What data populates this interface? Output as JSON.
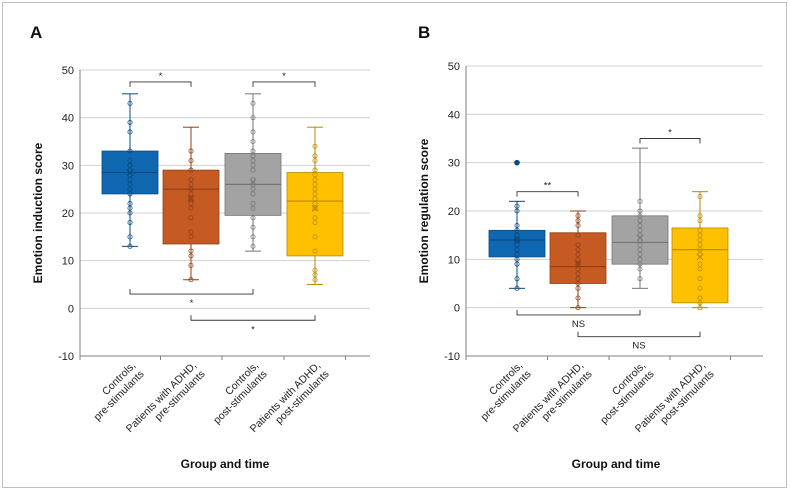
{
  "chart_data": [
    {
      "type": "box",
      "panel_label": "A",
      "title": "",
      "ylabel": "Emotion induction score",
      "xlabel": "Group and time",
      "ylim": [
        -10,
        50
      ],
      "yticks": [
        -10,
        0,
        10,
        20,
        30,
        40,
        50
      ],
      "grid": true,
      "categories": [
        [
          "Controls,",
          "pre-stimulants"
        ],
        [
          "Patients with ADHD,",
          "pre-stimulants"
        ],
        [
          "Controls,",
          "post-stimulants"
        ],
        [
          "Patients with ADHD,",
          "post-stimulants"
        ]
      ],
      "boxes": [
        {
          "color": "#0f67b1",
          "min": 13,
          "q1": 24,
          "median": 28.5,
          "q3": 33,
          "max": 45,
          "mean": 28.5,
          "points": [
            43,
            39,
            37,
            33,
            31,
            30,
            30,
            29,
            28,
            27,
            26,
            25,
            24,
            22,
            21,
            20,
            18,
            15,
            13
          ]
        },
        {
          "color": "#c55a22",
          "min": 6,
          "q1": 13.5,
          "median": 25,
          "q3": 29,
          "max": 38,
          "mean": 23,
          "points": [
            33,
            31,
            29,
            27,
            26,
            25,
            25,
            24,
            23,
            22,
            21,
            19,
            16,
            15,
            12,
            11,
            9,
            6
          ]
        },
        {
          "color": "#a3a3a3",
          "min": 12,
          "q1": 19.5,
          "median": 26,
          "q3": 32.5,
          "max": 45,
          "mean": 26.5,
          "points": [
            43,
            40,
            37,
            35,
            33,
            32,
            31,
            30,
            29,
            27,
            26,
            25,
            24,
            22,
            21,
            19,
            17,
            15,
            13
          ]
        },
        {
          "color": "#ffc000",
          "min": 5,
          "q1": 11,
          "median": 22.5,
          "q3": 28.5,
          "max": 38,
          "mean": 21,
          "points": [
            34,
            32,
            31,
            29,
            28,
            27,
            26,
            25,
            24,
            23,
            22,
            21,
            19,
            18,
            15,
            12,
            8,
            7,
            6
          ]
        }
      ],
      "significance": [
        {
          "from": 0,
          "to": 1,
          "label": "*",
          "position": "top",
          "y": 47.5
        },
        {
          "from": 2,
          "to": 3,
          "label": "*",
          "position": "top",
          "y": 47.5
        },
        {
          "from": 0,
          "to": 2,
          "label": "*",
          "position": "bottom",
          "y": 3
        },
        {
          "from": 1,
          "to": 3,
          "label": "*",
          "position": "bottom",
          "y": -2.5
        }
      ]
    },
    {
      "type": "box",
      "panel_label": "B",
      "title": "",
      "ylabel": "Emotion regulation score",
      "xlabel": "Group and time",
      "ylim": [
        -10,
        50
      ],
      "yticks": [
        -10,
        0,
        10,
        20,
        30,
        40,
        50
      ],
      "grid": true,
      "categories": [
        [
          "Controls,",
          "pre-stimulants"
        ],
        [
          "Patients with ADHD,",
          "pre-stimulants"
        ],
        [
          "Controls,",
          "post-stimulants"
        ],
        [
          "Patients with ADHD,",
          "post-stimulants"
        ]
      ],
      "boxes": [
        {
          "color": "#0f67b1",
          "min": 4,
          "q1": 10.5,
          "median": 14,
          "q3": 16,
          "max": 22,
          "mean": 14,
          "outliers": [
            30
          ],
          "points": [
            21,
            20,
            17,
            16,
            15,
            15,
            14,
            14,
            13,
            12,
            11,
            10,
            9,
            6,
            4
          ]
        },
        {
          "color": "#c55a22",
          "min": 0,
          "q1": 5,
          "median": 8.5,
          "q3": 15.5,
          "max": 20,
          "mean": 9,
          "points": [
            19,
            18,
            17,
            15,
            13,
            12,
            11,
            10,
            9,
            8,
            7,
            6,
            5,
            4,
            2,
            0
          ]
        },
        {
          "color": "#a3a3a3",
          "min": 4,
          "q1": 9,
          "median": 13.5,
          "q3": 19,
          "max": 33,
          "mean": 14.5,
          "points": [
            22,
            20,
            19,
            18,
            17,
            16,
            15,
            14,
            13,
            12,
            11,
            10,
            9,
            8,
            6
          ]
        },
        {
          "color": "#ffc000",
          "min": 0,
          "q1": 1,
          "median": 12,
          "q3": 16.5,
          "max": 24,
          "mean": 10.5,
          "points": [
            23,
            19,
            18,
            16,
            15,
            14,
            13,
            12,
            11,
            9,
            8,
            6,
            4,
            2,
            1,
            0
          ]
        }
      ],
      "significance": [
        {
          "from": 0,
          "to": 1,
          "label": "**",
          "position": "top",
          "y": 24
        },
        {
          "from": 2,
          "to": 3,
          "label": "*",
          "position": "top",
          "y": 35
        },
        {
          "from": 0,
          "to": 2,
          "label": "NS",
          "position": "bottom",
          "y": -1.5
        },
        {
          "from": 1,
          "to": 3,
          "label": "NS",
          "position": "bottom",
          "y": -6
        }
      ]
    }
  ]
}
